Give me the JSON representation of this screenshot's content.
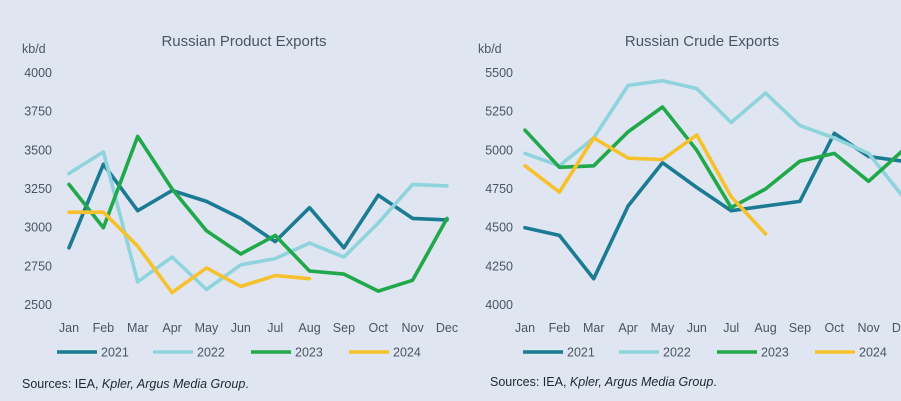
{
  "colors": {
    "s2021": "#1b7b93",
    "s2022": "#8fd3dc",
    "s2023": "#21a84a",
    "s2024": "#f6c12c",
    "background": "#dfe6f2"
  },
  "chart_data": [
    {
      "type": "line",
      "title": "Russian Product Exports",
      "unit_label": "kb/d",
      "ylim": [
        2500,
        4000
      ],
      "yticks": [
        4000,
        3750,
        3500,
        3250,
        3000,
        2750,
        2500
      ],
      "categories": [
        "Jan",
        "Feb",
        "Mar",
        "Apr",
        "May",
        "Jun",
        "Jul",
        "Aug",
        "Sep",
        "Oct",
        "Nov",
        "Dec"
      ],
      "grid": false,
      "legend_position": "bottom",
      "series": [
        {
          "name": "2021",
          "values": [
            2870,
            3410,
            3110,
            3240,
            3170,
            3060,
            2910,
            3130,
            2870,
            3210,
            3060,
            3050
          ]
        },
        {
          "name": "2022",
          "values": [
            3350,
            3490,
            2650,
            2810,
            2600,
            2760,
            2800,
            2900,
            2810,
            3030,
            3280,
            3270
          ]
        },
        {
          "name": "2023",
          "values": [
            3280,
            3000,
            3590,
            3250,
            2980,
            2830,
            2950,
            2720,
            2700,
            2590,
            2660,
            3060
          ]
        },
        {
          "name": "2024",
          "values": [
            3100,
            3100,
            2880,
            2580,
            2740,
            2620,
            2690,
            2670,
            null,
            null,
            null,
            null
          ]
        }
      ]
    },
    {
      "type": "line",
      "title": "Russian Crude Exports",
      "unit_label": "kb/d",
      "ylim": [
        4000,
        5500
      ],
      "yticks": [
        5500,
        5250,
        5000,
        4750,
        4500,
        4250,
        4000
      ],
      "categories": [
        "Jan",
        "Feb",
        "Mar",
        "Apr",
        "May",
        "Jun",
        "Jul",
        "Aug",
        "Sep",
        "Oct",
        "Nov",
        "Dec"
      ],
      "grid": false,
      "legend_position": "bottom",
      "series": [
        {
          "name": "2021",
          "values": [
            4500,
            4450,
            4170,
            4640,
            4920,
            4760,
            4610,
            4640,
            4670,
            5110,
            4960,
            4930
          ]
        },
        {
          "name": "2022",
          "values": [
            4980,
            4900,
            5080,
            5420,
            5450,
            5400,
            5180,
            5370,
            5160,
            5080,
            4980,
            4700
          ]
        },
        {
          "name": "2023",
          "values": [
            5130,
            4890,
            4900,
            5120,
            5280,
            5000,
            4630,
            4750,
            4930,
            4980,
            4800,
            5000
          ]
        },
        {
          "name": "2024",
          "values": [
            4900,
            4730,
            5080,
            4950,
            4940,
            5100,
            4700,
            4460,
            null,
            null,
            null,
            null
          ]
        }
      ]
    }
  ],
  "sources": [
    {
      "prefix": "Sources: IEA, ",
      "italic": "Kpler, Argus Media Group",
      "suffix": "."
    },
    {
      "prefix": "Sources: IEA, ",
      "italic": "Kpler, Argus Media Group",
      "suffix": "."
    }
  ]
}
